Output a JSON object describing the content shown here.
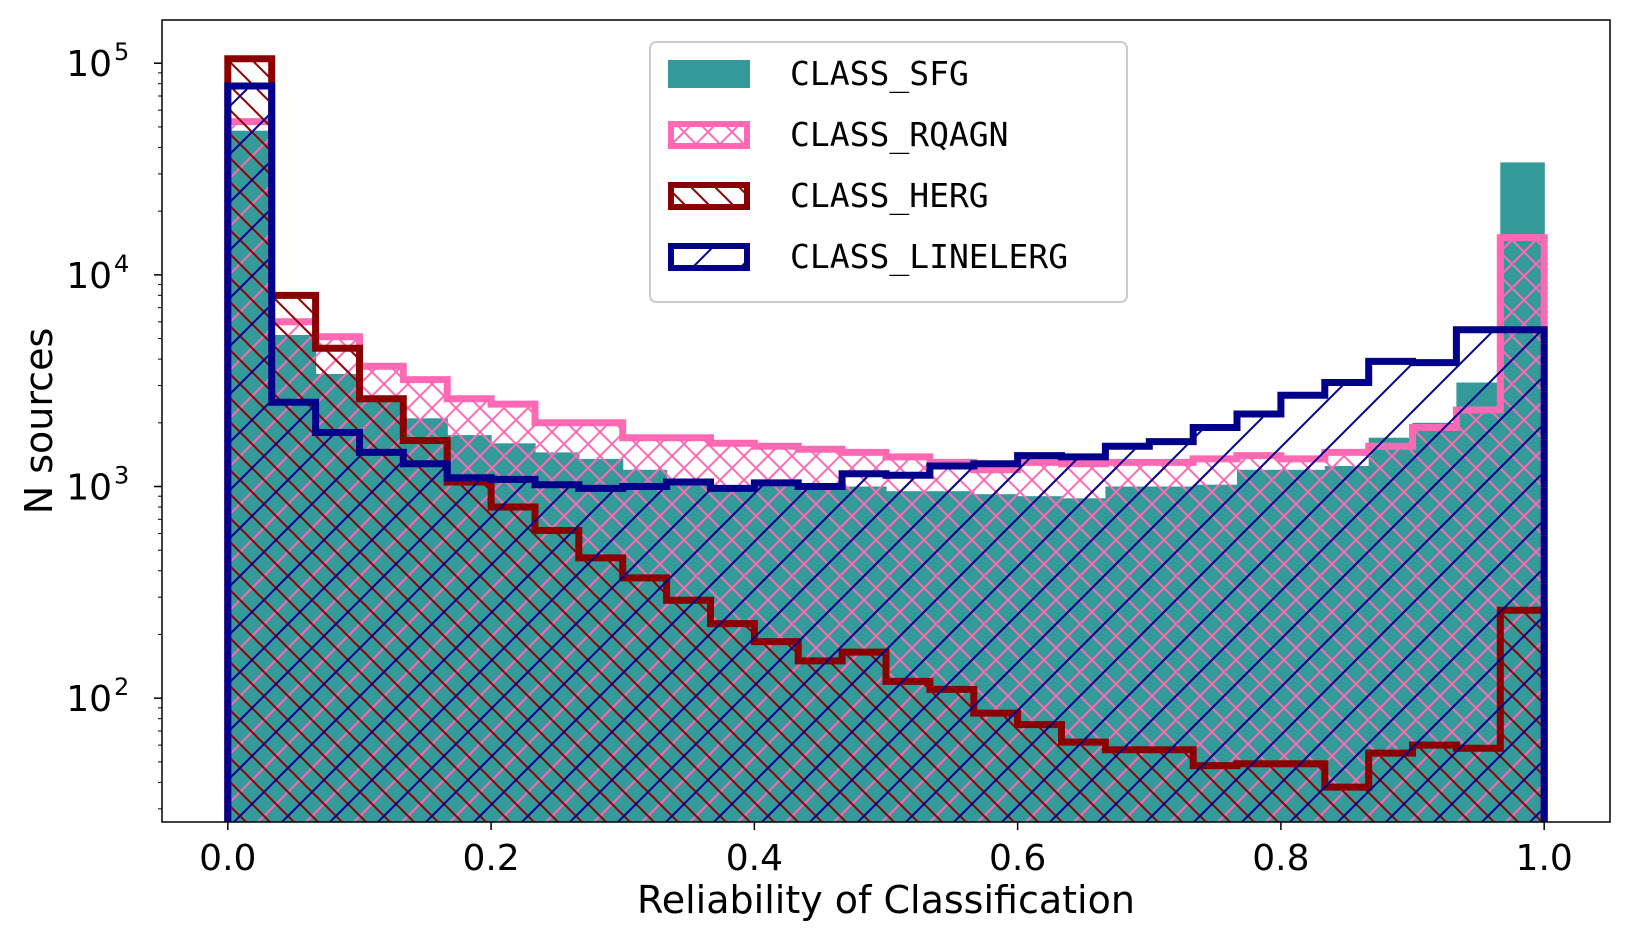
{
  "chart_data": {
    "type": "histogram",
    "xlabel": "Reliability of Classification",
    "ylabel": "N sources",
    "xlim": [
      -0.05,
      1.05
    ],
    "ylim": [
      26,
      160000
    ],
    "yscale": "log",
    "xticks": [
      {
        "value": 0.0,
        "label": "0.0"
      },
      {
        "value": 0.2,
        "label": "0.2"
      },
      {
        "value": 0.4,
        "label": "0.4"
      },
      {
        "value": 0.6,
        "label": "0.6"
      },
      {
        "value": 0.8,
        "label": "0.8"
      },
      {
        "value": 1.0,
        "label": "1.0"
      }
    ],
    "yticks": [
      {
        "value": 100,
        "base": "10",
        "exp": "2"
      },
      {
        "value": 1000,
        "base": "10",
        "exp": "3"
      },
      {
        "value": 10000,
        "base": "10",
        "exp": "4"
      },
      {
        "value": 100000,
        "base": "10",
        "exp": "5"
      }
    ],
    "bins": 30,
    "bin_range": [
      0.0,
      1.0
    ],
    "series": [
      {
        "name": "CLASS_SFG",
        "style": "filled",
        "color": "#339999",
        "values": [
          48000,
          5200,
          3400,
          2600,
          2100,
          1750,
          1600,
          1450,
          1350,
          1200,
          1050,
          1000,
          1000,
          1000,
          1000,
          950,
          950,
          920,
          900,
          880,
          1000,
          1000,
          1020,
          1200,
          1200,
          1250,
          1700,
          2000,
          3100,
          34000
        ]
      },
      {
        "name": "CLASS_RQAGN",
        "style": "crosshatch",
        "color": "#ff69b4",
        "values": [
          53000,
          6000,
          5100,
          3700,
          3200,
          2600,
          2450,
          2000,
          2000,
          1700,
          1700,
          1600,
          1550,
          1500,
          1450,
          1380,
          1300,
          1200,
          1300,
          1280,
          1300,
          1300,
          1350,
          1400,
          1350,
          1450,
          1550,
          1900,
          2300,
          15000
        ]
      },
      {
        "name": "CLASS_HERG",
        "style": "backslash",
        "color": "#8b0000",
        "values": [
          105000,
          8000,
          4500,
          2600,
          1650,
          1050,
          800,
          620,
          460,
          370,
          290,
          225,
          185,
          150,
          165,
          120,
          110,
          85,
          75,
          62,
          57,
          57,
          48,
          49,
          49,
          38,
          55,
          60,
          58,
          260
        ]
      },
      {
        "name": "CLASS_LINELERG",
        "style": "slash",
        "color": "#00008b",
        "values": [
          78000,
          2500,
          1800,
          1450,
          1280,
          1100,
          1080,
          1020,
          980,
          1000,
          1050,
          980,
          1040,
          1000,
          1150,
          1130,
          1250,
          1280,
          1400,
          1380,
          1550,
          1630,
          1900,
          2200,
          2700,
          3100,
          3900,
          3850,
          5500,
          5500
        ]
      }
    ],
    "legend": {
      "position": "top-center",
      "entries": [
        "CLASS_SFG",
        "CLASS_RQAGN",
        "CLASS_HERG",
        "CLASS_LINELERG"
      ]
    }
  }
}
